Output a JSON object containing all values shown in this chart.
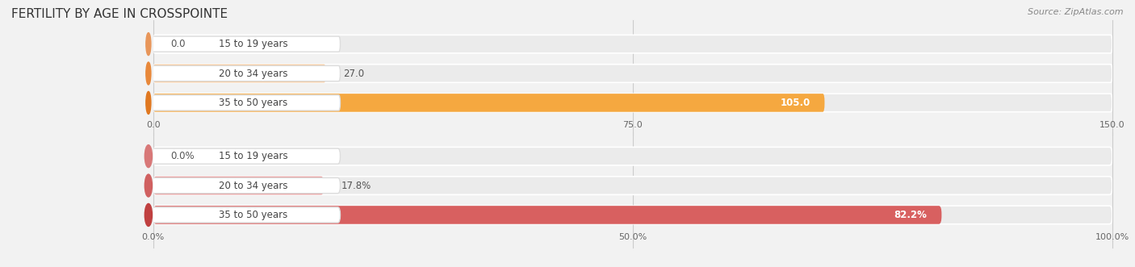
{
  "title": "FERTILITY BY AGE IN CROSSPOINTE",
  "source": "Source: ZipAtlas.com",
  "top_chart": {
    "categories": [
      "15 to 19 years",
      "20 to 34 years",
      "35 to 50 years"
    ],
    "values": [
      0.0,
      27.0,
      105.0
    ],
    "xlim": [
      0,
      150
    ],
    "xticks": [
      0.0,
      75.0,
      150.0
    ],
    "xtick_labels": [
      "0.0",
      "75.0",
      "150.0"
    ],
    "bar_bg_color": "#ebebeb",
    "bar_colors": [
      "#f8d4b0",
      "#f8c490",
      "#f5a840"
    ],
    "circle_colors": [
      "#e8965a",
      "#e8883a",
      "#e07820"
    ],
    "label_box_color": "#f5f5f5",
    "bar_height": 0.62,
    "value_labels": [
      "0.0",
      "27.0",
      "105.0"
    ],
    "label_inside": [
      false,
      false,
      true
    ]
  },
  "bottom_chart": {
    "categories": [
      "15 to 19 years",
      "20 to 34 years",
      "35 to 50 years"
    ],
    "values": [
      0.0,
      17.8,
      82.2
    ],
    "xlim": [
      0,
      100
    ],
    "xticks": [
      0.0,
      50.0,
      100.0
    ],
    "xtick_labels": [
      "0.0%",
      "50.0%",
      "100.0%"
    ],
    "bar_bg_color": "#ebebeb",
    "bar_colors": [
      "#f0b8b0",
      "#e89090",
      "#d86060"
    ],
    "circle_colors": [
      "#d87878",
      "#d06060",
      "#c04040"
    ],
    "label_box_color": "#f5f5f5",
    "bar_height": 0.62,
    "value_labels": [
      "0.0%",
      "17.8%",
      "82.2%"
    ],
    "label_inside": [
      false,
      false,
      true
    ]
  },
  "bg_color": "#f2f2f2",
  "title_fontsize": 11,
  "label_fontsize": 8.5,
  "tick_fontsize": 8,
  "source_fontsize": 8
}
